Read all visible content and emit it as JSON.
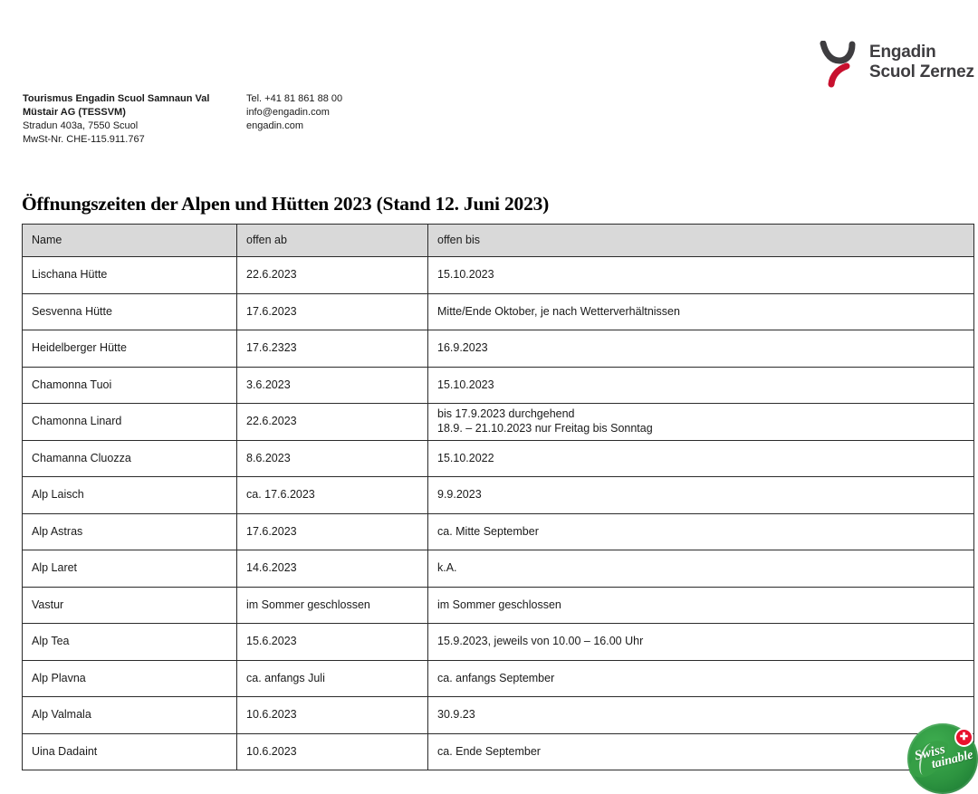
{
  "logo": {
    "line1": "Engadin",
    "line2": "Scuol Zernez",
    "gray": "#3e3d40",
    "red": "#c8102e"
  },
  "letterhead": {
    "company_line1": "Tourismus Engadin Scuol Samnaun Val",
    "company_line2": "Müstair AG (TESSVM)",
    "address_line": "Stradun 403a, 7550 Scuol",
    "vat_line": "MwSt-Nr. CHE-115.911.767",
    "phone": "Tel. +41 81 861 88 00",
    "email": "info@engadin.com",
    "website": "engadin.com"
  },
  "title": "Öffnungszeiten der Alpen und Hütten 2023 (Stand 12. Juni 2023)",
  "table": {
    "header_bg": "#d9d9d9",
    "columns": [
      "Name",
      "offen ab",
      "offen bis"
    ],
    "rows": [
      {
        "name": "Lischana Hütte",
        "ab": "22.6.2023",
        "bis": "15.10.2023"
      },
      {
        "name": "Sesvenna Hütte",
        "ab": "17.6.2023",
        "bis": "Mitte/Ende Oktober, je nach Wetterverhältnissen"
      },
      {
        "name": "Heidelberger Hütte",
        "ab": "17.6.2323",
        "bis": "16.9.2023"
      },
      {
        "name": "Chamonna Tuoi",
        "ab": "3.6.2023",
        "bis": "15.10.2023"
      },
      {
        "name": "Chamonna Linard",
        "ab": "22.6.2023",
        "bis": "bis 17.9.2023 durchgehend\n18.9. – 21.10.2023 nur Freitag bis Sonntag"
      },
      {
        "name": "Chamanna Cluozza",
        "ab": "8.6.2023",
        "bis": "15.10.2022"
      },
      {
        "name": "Alp Laisch",
        "ab": "ca. 17.6.2023",
        "bis": "9.9.2023"
      },
      {
        "name": "Alp Astras",
        "ab": "17.6.2023",
        "bis": "ca. Mitte September"
      },
      {
        "name": "Alp Laret",
        "ab": "14.6.2023",
        "bis": "k.A."
      },
      {
        "name": "Vastur",
        "ab": "im Sommer geschlossen",
        "bis": "im Sommer geschlossen"
      },
      {
        "name": "Alp Tea",
        "ab": "15.6.2023",
        "bis": "15.9.2023, jeweils von 10.00 – 16.00 Uhr"
      },
      {
        "name": "Alp Plavna",
        "ab": "ca. anfangs Juli",
        "bis": "ca. anfangs September"
      },
      {
        "name": "Alp Valmala",
        "ab": "10.6.2023",
        "bis": "30.9.23"
      },
      {
        "name": "Uina Dadaint",
        "ab": "10.6.2023",
        "bis": "ca. Ende September"
      }
    ]
  },
  "badge": {
    "word_top": "Swiss",
    "word_bottom": "tainable",
    "green": "#2d9440",
    "cross_red": "#e8112d",
    "cross_glyph": "✚"
  }
}
